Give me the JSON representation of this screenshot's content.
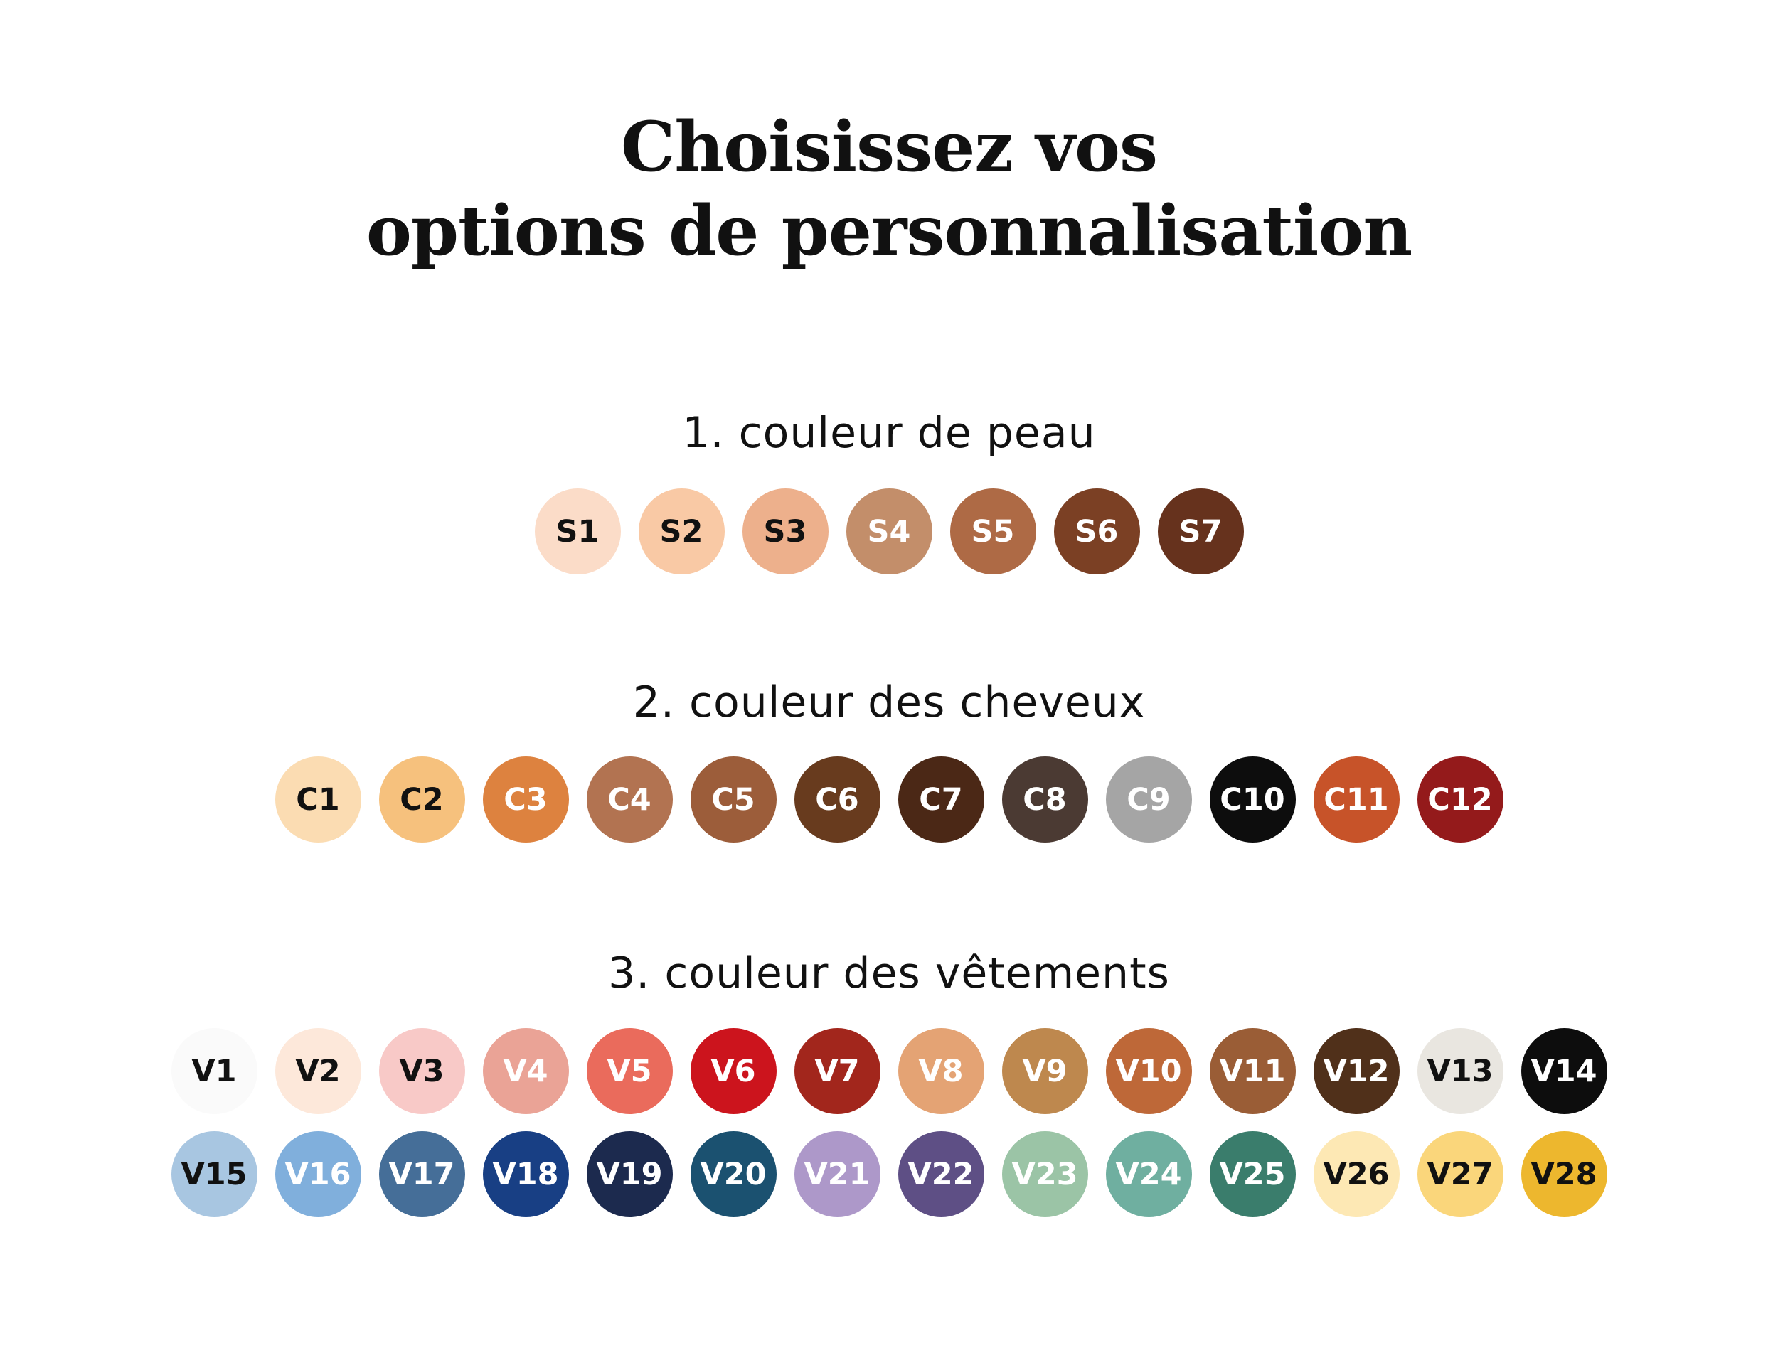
{
  "title": {
    "line1": "Choisissez vos",
    "line2": "options de personnalisation"
  },
  "sections": [
    {
      "label": "1. couleur de peau",
      "swatches": [
        {
          "code": "S1",
          "color": "#FBDCC8",
          "text": "#111111"
        },
        {
          "code": "S2",
          "color": "#F9C9A5",
          "text": "#111111"
        },
        {
          "code": "S3",
          "color": "#EDB08C",
          "text": "#111111"
        },
        {
          "code": "S4",
          "color": "#C38E6A",
          "text": "#ffffff"
        },
        {
          "code": "S5",
          "color": "#AE6A45",
          "text": "#ffffff"
        },
        {
          "code": "S6",
          "color": "#7B4024",
          "text": "#ffffff"
        },
        {
          "code": "S7",
          "color": "#66321D",
          "text": "#ffffff"
        }
      ]
    },
    {
      "label": "2. couleur des cheveux",
      "swatches": [
        {
          "code": "C1",
          "color": "#FBDCB2",
          "text": "#111111"
        },
        {
          "code": "C2",
          "color": "#F6C17D",
          "text": "#111111"
        },
        {
          "code": "C3",
          "color": "#DD823F",
          "text": "#ffffff"
        },
        {
          "code": "C4",
          "color": "#B27351",
          "text": "#ffffff"
        },
        {
          "code": "C5",
          "color": "#9C5D3A",
          "text": "#ffffff"
        },
        {
          "code": "C6",
          "color": "#683B1E",
          "text": "#ffffff"
        },
        {
          "code": "C7",
          "color": "#4B2816",
          "text": "#ffffff"
        },
        {
          "code": "C8",
          "color": "#4B3A33",
          "text": "#ffffff"
        },
        {
          "code": "C9",
          "color": "#A5A5A5",
          "text": "#ffffff"
        },
        {
          "code": "C10",
          "color": "#0D0D0D",
          "text": "#ffffff"
        },
        {
          "code": "C11",
          "color": "#C75329",
          "text": "#ffffff"
        },
        {
          "code": "C12",
          "color": "#941A1B",
          "text": "#ffffff"
        }
      ]
    },
    {
      "label": "3. couleur des vêtements",
      "swatches": [
        {
          "code": "V1",
          "color": "#FAFAFA",
          "text": "#111111"
        },
        {
          "code": "V2",
          "color": "#FDE8DA",
          "text": "#111111"
        },
        {
          "code": "V3",
          "color": "#F8C9C7",
          "text": "#111111"
        },
        {
          "code": "V4",
          "color": "#EAA396",
          "text": "#ffffff"
        },
        {
          "code": "V5",
          "color": "#EA6B5C",
          "text": "#ffffff"
        },
        {
          "code": "V6",
          "color": "#CC141D",
          "text": "#ffffff"
        },
        {
          "code": "V7",
          "color": "#A2261C",
          "text": "#ffffff"
        },
        {
          "code": "V8",
          "color": "#E4A374",
          "text": "#ffffff"
        },
        {
          "code": "V9",
          "color": "#BE884E",
          "text": "#ffffff"
        },
        {
          "code": "V10",
          "color": "#BE6838",
          "text": "#ffffff"
        },
        {
          "code": "V11",
          "color": "#9A5D36",
          "text": "#ffffff"
        },
        {
          "code": "V12",
          "color": "#50301A",
          "text": "#ffffff"
        },
        {
          "code": "V13",
          "color": "#E9E6E0",
          "text": "#111111"
        },
        {
          "code": "V14",
          "color": "#0D0D0D",
          "text": "#ffffff"
        },
        {
          "code": "V15",
          "color": "#A8C6E1",
          "text": "#111111"
        },
        {
          "code": "V16",
          "color": "#80AFDC",
          "text": "#ffffff"
        },
        {
          "code": "V17",
          "color": "#456E98",
          "text": "#ffffff"
        },
        {
          "code": "V18",
          "color": "#183F84",
          "text": "#ffffff"
        },
        {
          "code": "V19",
          "color": "#1C2A4E",
          "text": "#ffffff"
        },
        {
          "code": "V20",
          "color": "#1B5170",
          "text": "#ffffff"
        },
        {
          "code": "V21",
          "color": "#AD98C9",
          "text": "#ffffff"
        },
        {
          "code": "V22",
          "color": "#5E4F85",
          "text": "#ffffff"
        },
        {
          "code": "V23",
          "color": "#9BC4A6",
          "text": "#ffffff"
        },
        {
          "code": "V24",
          "color": "#6FAFA0",
          "text": "#ffffff"
        },
        {
          "code": "V25",
          "color": "#3A7D6C",
          "text": "#ffffff"
        },
        {
          "code": "V26",
          "color": "#FDE8B4",
          "text": "#111111"
        },
        {
          "code": "V27",
          "color": "#FAD67B",
          "text": "#111111"
        },
        {
          "code": "V28",
          "color": "#EDB72E",
          "text": "#111111"
        }
      ]
    }
  ]
}
